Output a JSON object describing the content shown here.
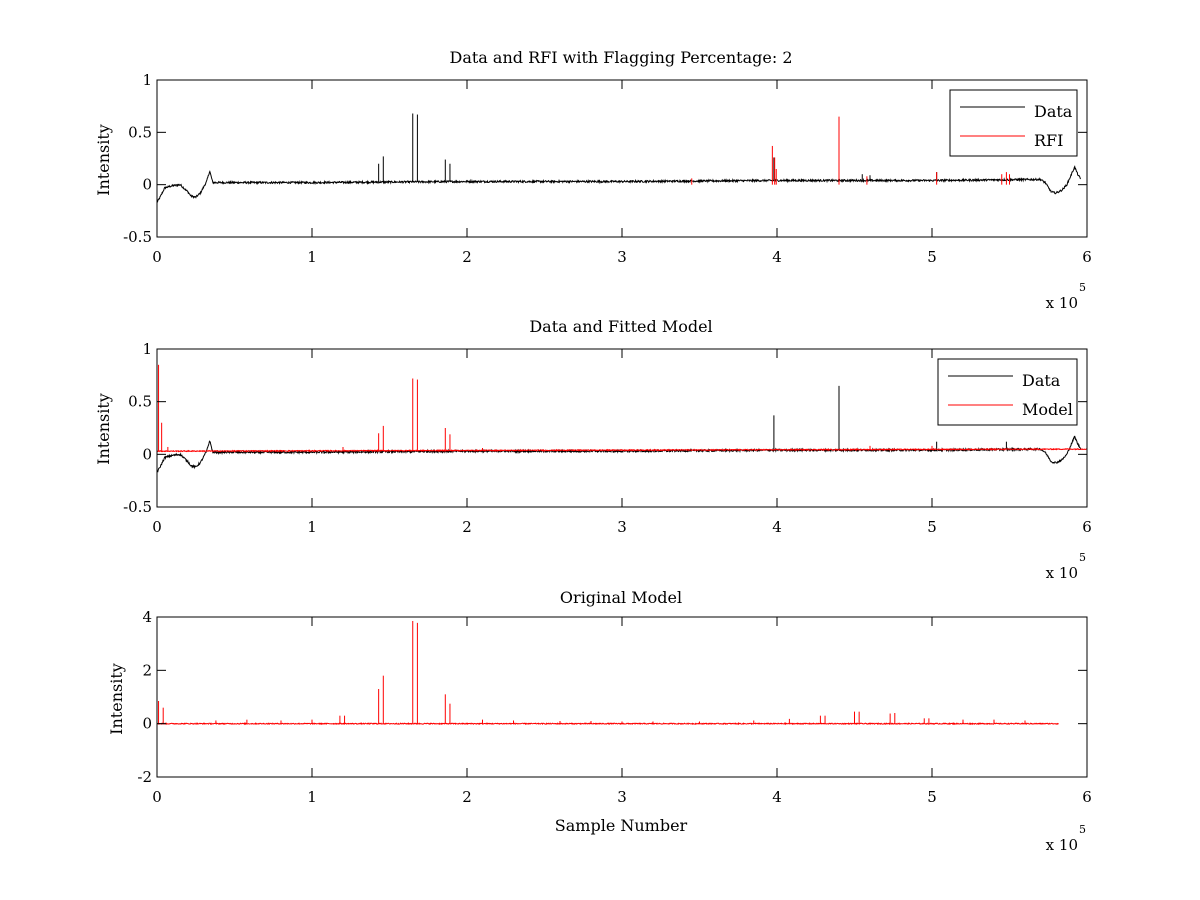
{
  "chart_data": [
    {
      "type": "line",
      "title": "Data and RFI with Flagging Percentage: 2",
      "xlabel": "",
      "ylabel": "Intensity",
      "xlim": [
        0,
        600000
      ],
      "ylim": [
        -0.5,
        1
      ],
      "x_ticks": [
        "0",
        "1",
        "2",
        "3",
        "4",
        "5",
        "6"
      ],
      "y_ticks": [
        "-0.5",
        "0",
        "0.5",
        "1"
      ],
      "x_exponent": "x 10",
      "x_exponent_power": "5",
      "grid": false,
      "legend_position": "top-right",
      "series": [
        {
          "name": "Data",
          "color": "#000000",
          "baseline": [
            [
              0,
              -0.17
            ],
            [
              2000,
              -0.12
            ],
            [
              5000,
              -0.03
            ],
            [
              10000,
              -0.01
            ],
            [
              15000,
              0.0
            ],
            [
              20000,
              -0.07
            ],
            [
              22000,
              -0.11
            ],
            [
              25000,
              -0.12
            ],
            [
              28000,
              -0.08
            ],
            [
              32000,
              0.03
            ],
            [
              34000,
              0.13
            ],
            [
              36000,
              0.02
            ],
            [
              100000,
              0.02
            ],
            [
              200000,
              0.03
            ],
            [
              300000,
              0.03
            ],
            [
              400000,
              0.04
            ],
            [
              500000,
              0.04
            ],
            [
              570000,
              0.05
            ],
            [
              573000,
              0.02
            ],
            [
              577000,
              -0.07
            ],
            [
              580000,
              -0.08
            ],
            [
              584000,
              -0.05
            ],
            [
              587000,
              0.0
            ],
            [
              590000,
              0.1
            ],
            [
              592000,
              0.17
            ],
            [
              594000,
              0.1
            ],
            [
              596000,
              0.05
            ]
          ],
          "spikes": [
            [
              143000,
              0.2
            ],
            [
              146000,
              0.27
            ],
            [
              165000,
              0.68
            ],
            [
              168000,
              0.67
            ],
            [
              186000,
              0.24
            ],
            [
              189000,
              0.2
            ],
            [
              398000,
              0.26
            ],
            [
              455000,
              0.1
            ],
            [
              460000,
              0.09
            ],
            [
              503000,
              0.12
            ]
          ]
        },
        {
          "name": "RFI",
          "color": "#ff0000",
          "spikes": [
            [
              345000,
              0.06
            ],
            [
              397000,
              0.37
            ],
            [
              398500,
              0.26
            ],
            [
              399500,
              0.15
            ],
            [
              440000,
              0.65
            ],
            [
              458000,
              0.08
            ],
            [
              503000,
              0.12
            ],
            [
              545000,
              0.1
            ],
            [
              548000,
              0.12
            ],
            [
              550000,
              0.1
            ]
          ]
        }
      ]
    },
    {
      "type": "line",
      "title": "Data and Fitted Model",
      "xlabel": "",
      "ylabel": "Intensity",
      "xlim": [
        0,
        600000
      ],
      "ylim": [
        -0.5,
        1
      ],
      "x_ticks": [
        "0",
        "1",
        "2",
        "3",
        "4",
        "5",
        "6"
      ],
      "y_ticks": [
        "-0.5",
        "0",
        "0.5",
        "1"
      ],
      "x_exponent": "x 10",
      "x_exponent_power": "5",
      "grid": false,
      "legend_position": "top-right",
      "series": [
        {
          "name": "Data",
          "color": "#000000",
          "baseline": [
            [
              0,
              -0.17
            ],
            [
              2000,
              -0.12
            ],
            [
              5000,
              -0.03
            ],
            [
              10000,
              -0.01
            ],
            [
              15000,
              0.0
            ],
            [
              20000,
              -0.07
            ],
            [
              22000,
              -0.11
            ],
            [
              25000,
              -0.12
            ],
            [
              28000,
              -0.08
            ],
            [
              32000,
              0.03
            ],
            [
              34000,
              0.13
            ],
            [
              36000,
              0.02
            ],
            [
              100000,
              0.02
            ],
            [
              200000,
              0.03
            ],
            [
              300000,
              0.03
            ],
            [
              400000,
              0.04
            ],
            [
              500000,
              0.04
            ],
            [
              570000,
              0.05
            ],
            [
              573000,
              0.02
            ],
            [
              577000,
              -0.07
            ],
            [
              580000,
              -0.08
            ],
            [
              584000,
              -0.05
            ],
            [
              587000,
              0.0
            ],
            [
              590000,
              0.1
            ],
            [
              592000,
              0.17
            ],
            [
              594000,
              0.1
            ],
            [
              596000,
              0.05
            ]
          ],
          "spikes": [
            [
              398000,
              0.37
            ],
            [
              440000,
              0.65
            ],
            [
              503000,
              0.12
            ],
            [
              548000,
              0.12
            ]
          ]
        },
        {
          "name": "Model",
          "color": "#ff0000",
          "baseline": [
            [
              0,
              0.03
            ],
            [
              600000,
              0.05
            ]
          ],
          "spikes": [
            [
              1000,
              0.85
            ],
            [
              3000,
              0.3
            ],
            [
              7000,
              0.07
            ],
            [
              143000,
              0.2
            ],
            [
              146000,
              0.27
            ],
            [
              165000,
              0.72
            ],
            [
              168000,
              0.71
            ],
            [
              186000,
              0.25
            ],
            [
              189000,
              0.19
            ],
            [
              120000,
              0.07
            ],
            [
              210000,
              0.06
            ],
            [
              300000,
              0.05
            ],
            [
              460000,
              0.08
            ],
            [
              500000,
              0.08
            ]
          ]
        }
      ]
    },
    {
      "type": "line",
      "title": "Original Model",
      "xlabel": "Sample Number",
      "ylabel": "Intensity",
      "xlim": [
        0,
        600000
      ],
      "ylim": [
        -2,
        4
      ],
      "x_ticks": [
        "0",
        "1",
        "2",
        "3",
        "4",
        "5",
        "6"
      ],
      "y_ticks": [
        "-2",
        "0",
        "2",
        "4"
      ],
      "x_exponent": "x 10",
      "x_exponent_power": "5",
      "grid": false,
      "series": [
        {
          "color": "#ff0000",
          "baseline": [
            [
              0,
              0
            ],
            [
              582000,
              0
            ]
          ],
          "spikes": [
            [
              1000,
              0.85
            ],
            [
              4000,
              0.6
            ],
            [
              143000,
              1.3
            ],
            [
              146000,
              1.8
            ],
            [
              165000,
              3.85
            ],
            [
              168000,
              3.78
            ],
            [
              186000,
              1.1
            ],
            [
              189000,
              0.75
            ],
            [
              38000,
              0.12
            ],
            [
              58000,
              0.15
            ],
            [
              80000,
              0.12
            ],
            [
              100000,
              0.15
            ],
            [
              118000,
              0.3
            ],
            [
              121000,
              0.3
            ],
            [
              210000,
              0.15
            ],
            [
              230000,
              0.12
            ],
            [
              260000,
              0.1
            ],
            [
              280000,
              0.1
            ],
            [
              300000,
              0.08
            ],
            [
              320000,
              0.08
            ],
            [
              350000,
              0.08
            ],
            [
              385000,
              0.12
            ],
            [
              408000,
              0.18
            ],
            [
              428000,
              0.3
            ],
            [
              431000,
              0.3
            ],
            [
              450000,
              0.45
            ],
            [
              453000,
              0.45
            ],
            [
              473000,
              0.38
            ],
            [
              476000,
              0.4
            ],
            [
              495000,
              0.2
            ],
            [
              498000,
              0.2
            ],
            [
              520000,
              0.15
            ],
            [
              540000,
              0.15
            ],
            [
              560000,
              0.12
            ]
          ]
        }
      ]
    }
  ]
}
